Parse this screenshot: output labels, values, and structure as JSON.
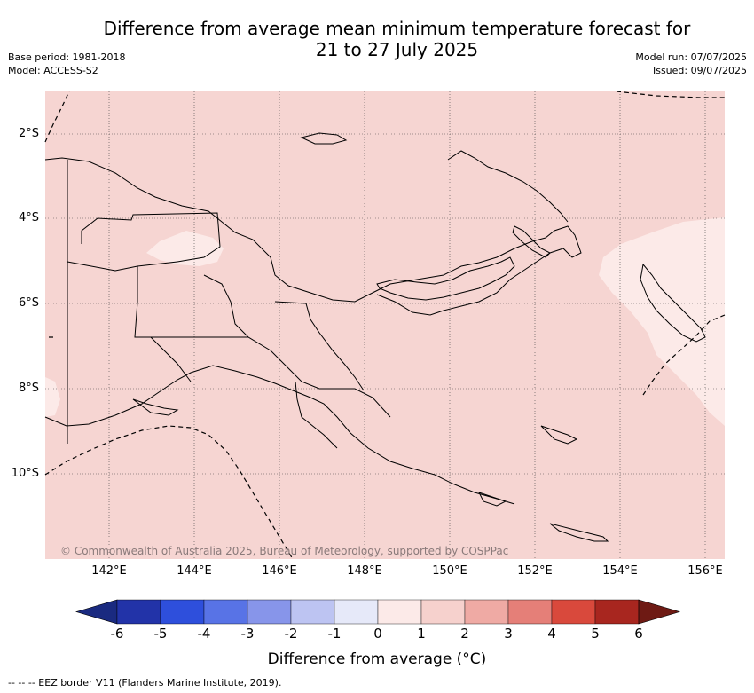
{
  "title_line1": "Difference from average mean minimum temperature forecast for",
  "title_line2": "21 to 27 July 2025",
  "meta_left": {
    "base_period": "Base period: 1981-2018",
    "model": "Model: ACCESS-S2"
  },
  "meta_right": {
    "model_run": "Model run: 07/07/2025",
    "issued": "Issued: 09/07/2025"
  },
  "copyright": "© Commonwealth of Australia 2025, Bureau of Meteorology, supported by COSPPac",
  "x_ticks": [
    "142°E",
    "144°E",
    "146°E",
    "148°E",
    "150°E",
    "152°E",
    "154°E",
    "156°E"
  ],
  "y_ticks": [
    "2°S",
    "4°S",
    "6°S",
    "8°S",
    "10°S"
  ],
  "colorbar": {
    "labels": [
      "-6",
      "-5",
      "-4",
      "-3",
      "-2",
      "-1",
      "0",
      "1",
      "2",
      "3",
      "4",
      "5",
      "6"
    ],
    "colors": [
      "#2233a8",
      "#2e4fdc",
      "#5873e6",
      "#8795ea",
      "#bdc4f2",
      "#e6e9f9",
      "#fceae8",
      "#f6d1cd",
      "#efaaa4",
      "#e57f78",
      "#d9493c",
      "#a8261f"
    ],
    "low_extend": "#1a2a80",
    "high_extend": "#6e1a14",
    "title": "Difference from average (°C)"
  },
  "map_colors": {
    "main": "#f6d5d2",
    "light": "#fceae8"
  },
  "footnote": "-- -- -- EEZ border V11 (Flanders Marine Institute, 2019)."
}
